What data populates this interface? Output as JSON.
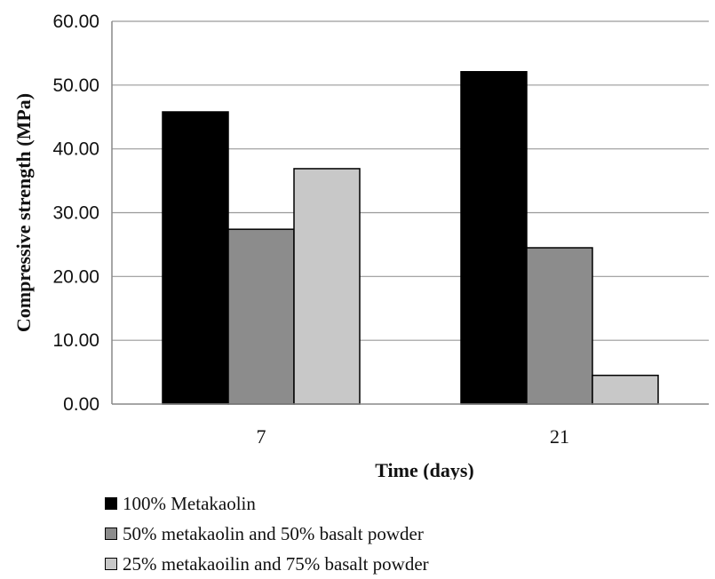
{
  "chart_data": {
    "type": "bar",
    "title": "",
    "xlabel": "Time (days)",
    "ylabel": "Compressive strength (MPa)",
    "categories": [
      "7",
      "21"
    ],
    "ylim": [
      0,
      60
    ],
    "yticks": [
      "0.00",
      "10.00",
      "20.00",
      "30.00",
      "40.00",
      "50.00",
      "60.00"
    ],
    "grid": true,
    "legend_position": "bottom-left",
    "series": [
      {
        "name": "100% Metakaolin",
        "color": "#000000",
        "values": [
          45.8,
          52.1
        ]
      },
      {
        "name": "50% metakaolin and 50% basalt powder",
        "color": "#8c8c8c",
        "values": [
          27.4,
          24.5
        ]
      },
      {
        "name": "25% metakaoilin and 75% basalt powder",
        "color": "#c8c8c8",
        "values": [
          36.9,
          4.5
        ]
      }
    ]
  }
}
